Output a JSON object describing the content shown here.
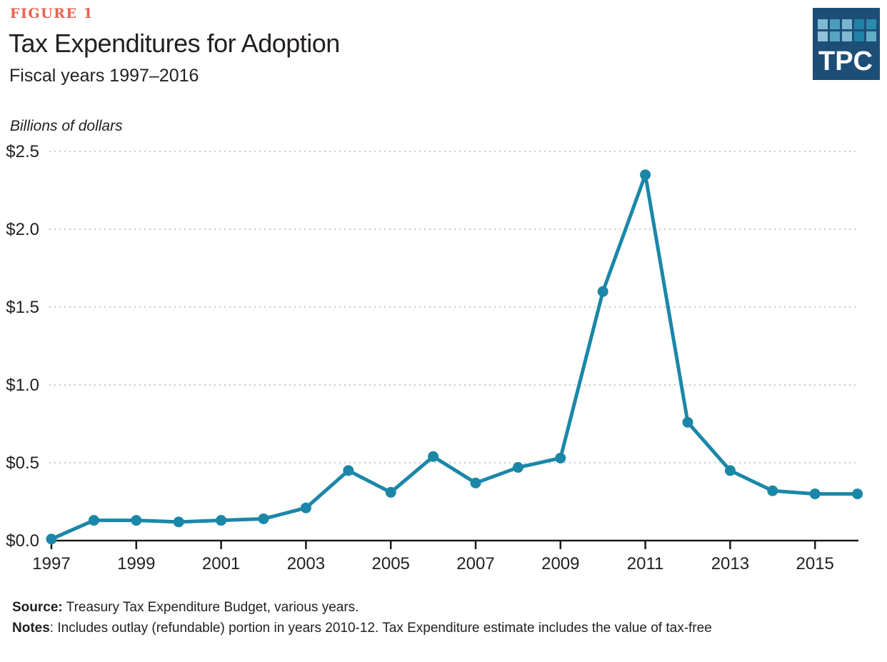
{
  "header": {
    "figure_label": "FIGURE 1",
    "title": "Tax Expenditures for Adoption",
    "subtitle": "Fiscal years 1997–2016",
    "y_axis_title": "Billions of dollars",
    "figure_label_color": "#E9624B"
  },
  "logo": {
    "text": "TPC",
    "background_color": "#1D4E77",
    "square_colors_row1": [
      "#7EB8D1",
      "#4A9DBC",
      "#79B5CE",
      "#1F82A6",
      "#2A8BAD"
    ],
    "square_colors_row2": [
      "#8FC2D8",
      "#56A5C2",
      "#7EB8D1",
      "#1F82A6",
      "#63ACC6"
    ]
  },
  "chart_data": {
    "type": "line",
    "title": "Tax Expenditures for Adoption",
    "subtitle": "Fiscal years 1997–2016",
    "ylabel": "Billions of dollars",
    "xlabel": "",
    "x": [
      1997,
      1998,
      1999,
      2000,
      2001,
      2002,
      2003,
      2004,
      2005,
      2006,
      2007,
      2008,
      2009,
      2010,
      2011,
      2012,
      2013,
      2014,
      2015,
      2016
    ],
    "values": [
      0.01,
      0.13,
      0.13,
      0.12,
      0.13,
      0.14,
      0.21,
      0.45,
      0.31,
      0.54,
      0.37,
      0.47,
      0.53,
      1.6,
      2.35,
      0.76,
      0.45,
      0.32,
      0.3,
      0.3
    ],
    "ylim": [
      0,
      2.5
    ],
    "y_tick_values": [
      0,
      0.5,
      1.0,
      1.5,
      2.0,
      2.5
    ],
    "y_tick_labels": [
      "$0.0",
      "$0.5",
      "$1.0",
      "$1.5",
      "$2.0",
      "$2.5"
    ],
    "x_ticks": [
      1997,
      1999,
      2001,
      2003,
      2005,
      2007,
      2009,
      2011,
      2013,
      2015
    ],
    "x_tick_labels": [
      "1997",
      "1999",
      "2001",
      "2003",
      "2005",
      "2007",
      "2009",
      "2011",
      "2013",
      "2015"
    ],
    "grid": "horizontal-dotted",
    "legend": "none",
    "line_color": "#1B87A8",
    "marker": "circle",
    "grid_color": "#C9C9C9",
    "axis_color": "#1A1A1A",
    "tick_text_color": "#231F20"
  },
  "footer": {
    "source_label": "Source:",
    "source_text": " Treasury Tax Expenditure Budget, various years.",
    "notes_label": "Notes",
    "notes_text": ": Includes outlay (refundable) portion in years 2010-12. Tax Expenditure estimate includes the value of tax-free"
  }
}
